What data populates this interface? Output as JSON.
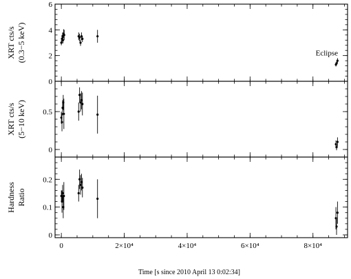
{
  "chart_data": {
    "type": "scatter",
    "xlabel": "Time [s since 2010 April 13  0:02:34]",
    "x_ticks": [
      {
        "value": 0,
        "label": "0"
      },
      {
        "value": 20000,
        "label": "2×10⁴"
      },
      {
        "value": 40000,
        "label": "4×10⁴"
      },
      {
        "value": 60000,
        "label": "6×10⁴"
      },
      {
        "value": 80000,
        "label": "8×10⁴"
      }
    ],
    "xlim": [
      -2000,
      91000
    ],
    "panels": [
      {
        "ylabel_lines": [
          "XRT cts/s",
          "(0.3−5 keV)"
        ],
        "ylim": [
          0,
          6
        ],
        "y_ticks": [
          {
            "value": 0,
            "label": "0"
          },
          {
            "value": 2,
            "label": "2"
          },
          {
            "value": 4,
            "label": "4"
          },
          {
            "value": 6,
            "label": "6"
          }
        ],
        "annotation": {
          "text": "Eclipse",
          "x": 84400,
          "y": 2.0
        },
        "points": [
          {
            "x": 0,
            "y": 3.0,
            "err": 0.2
          },
          {
            "x": 200,
            "y": 3.3,
            "err": 0.3
          },
          {
            "x": 400,
            "y": 3.5,
            "err": 0.3
          },
          {
            "x": 500,
            "y": 3.2,
            "err": 0.25
          },
          {
            "x": 700,
            "y": 3.7,
            "err": 0.35
          },
          {
            "x": 900,
            "y": 3.6,
            "err": 0.4
          },
          {
            "x": 5500,
            "y": 3.5,
            "err": 0.3
          },
          {
            "x": 5800,
            "y": 3.4,
            "err": 0.3
          },
          {
            "x": 6100,
            "y": 3.0,
            "err": 0.25
          },
          {
            "x": 6400,
            "y": 3.5,
            "err": 0.3
          },
          {
            "x": 6700,
            "y": 3.3,
            "err": 0.25
          },
          {
            "x": 11500,
            "y": 3.5,
            "err": 0.5
          },
          {
            "x": 87300,
            "y": 1.3,
            "err": 0.15
          },
          {
            "x": 87500,
            "y": 1.4,
            "err": 0.15
          },
          {
            "x": 87800,
            "y": 1.6,
            "err": 0.2
          }
        ]
      },
      {
        "ylabel_lines": [
          "XRT cts/s",
          "(5−10 keV)"
        ],
        "ylim": [
          -0.1,
          0.9
        ],
        "y_ticks": [
          {
            "value": 0,
            "label": "0"
          },
          {
            "value": 0.5,
            "label": "0.5"
          }
        ],
        "points": [
          {
            "x": 0,
            "y": 0.42,
            "err": 0.08
          },
          {
            "x": 200,
            "y": 0.36,
            "err": 0.12
          },
          {
            "x": 400,
            "y": 0.55,
            "err": 0.1
          },
          {
            "x": 600,
            "y": 0.62,
            "err": 0.1
          },
          {
            "x": 800,
            "y": 0.47,
            "err": 0.2
          },
          {
            "x": 5500,
            "y": 0.5,
            "err": 0.12
          },
          {
            "x": 5800,
            "y": 0.72,
            "err": 0.1
          },
          {
            "x": 6100,
            "y": 0.62,
            "err": 0.12
          },
          {
            "x": 6400,
            "y": 0.65,
            "err": 0.12
          },
          {
            "x": 6700,
            "y": 0.6,
            "err": 0.15
          },
          {
            "x": 11500,
            "y": 0.46,
            "err": 0.25
          },
          {
            "x": 87300,
            "y": 0.07,
            "err": 0.05
          },
          {
            "x": 87500,
            "y": 0.03,
            "err": 0.04
          },
          {
            "x": 87800,
            "y": 0.1,
            "err": 0.06
          }
        ]
      },
      {
        "ylabel_lines": [
          "Hardness",
          "Ratio"
        ],
        "ylim": [
          -0.01,
          0.28
        ],
        "y_ticks": [
          {
            "value": 0,
            "label": "0"
          },
          {
            "value": 0.1,
            "label": "0.1"
          },
          {
            "value": 0.2,
            "label": "0.2"
          }
        ],
        "points": [
          {
            "x": 0,
            "y": 0.14,
            "err": 0.02
          },
          {
            "x": 200,
            "y": 0.12,
            "err": 0.04
          },
          {
            "x": 400,
            "y": 0.15,
            "err": 0.03
          },
          {
            "x": 600,
            "y": 0.1,
            "err": 0.04
          },
          {
            "x": 800,
            "y": 0.14,
            "err": 0.05
          },
          {
            "x": 5500,
            "y": 0.15,
            "err": 0.03
          },
          {
            "x": 5800,
            "y": 0.2,
            "err": 0.035
          },
          {
            "x": 6100,
            "y": 0.18,
            "err": 0.035
          },
          {
            "x": 6400,
            "y": 0.19,
            "err": 0.03
          },
          {
            "x": 6700,
            "y": 0.17,
            "err": 0.035
          },
          {
            "x": 11500,
            "y": 0.13,
            "err": 0.07
          },
          {
            "x": 87300,
            "y": 0.06,
            "err": 0.04
          },
          {
            "x": 87500,
            "y": 0.03,
            "err": 0.03
          },
          {
            "x": 87800,
            "y": 0.08,
            "err": 0.04
          }
        ]
      }
    ]
  }
}
